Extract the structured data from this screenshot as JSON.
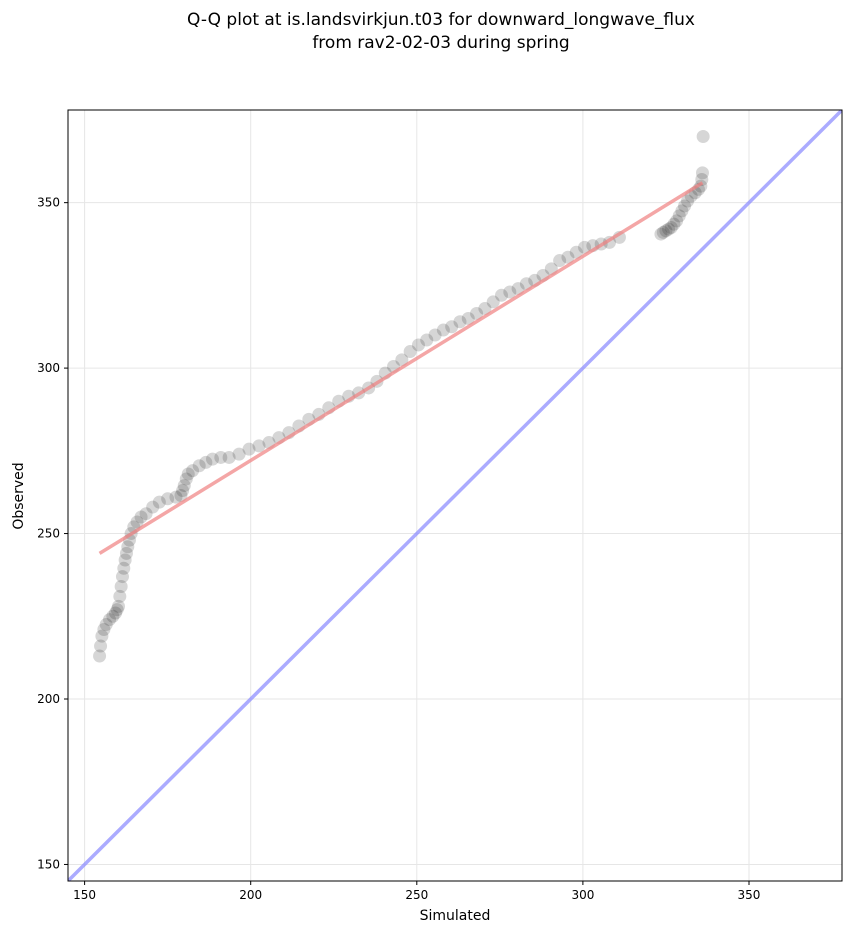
{
  "chart_data": {
    "type": "scatter",
    "title": [
      "Q-Q plot at is.landsvirkjun.t03 for downward_longwave_flux",
      "from rav2-02-03 during spring"
    ],
    "xlabel": "Simulated",
    "ylabel": "Observed",
    "xlim": [
      145,
      378
    ],
    "ylim": [
      145,
      378
    ],
    "xticks": [
      150,
      200,
      250,
      300,
      350
    ],
    "yticks": [
      150,
      200,
      250,
      300,
      350
    ],
    "grid": true,
    "colors": {
      "points": "#1a1a1a",
      "fit_line": "#f08080",
      "identity_line": "#8888ff"
    },
    "quantiles": {
      "x": [
        154.5,
        154.8,
        155.2,
        155.8,
        156.5,
        157.5,
        158.5,
        159.3,
        159.8,
        160.2,
        160.6,
        161.0,
        161.4,
        161.8,
        162.2,
        162.6,
        163.0,
        163.5,
        164.0,
        164.8,
        165.8,
        167.0,
        168.5,
        170.5,
        172.5,
        175.0,
        177.5,
        179.0,
        179.5,
        180.0,
        180.6,
        181.2,
        182.5,
        184.5,
        186.5,
        188.5,
        191.0,
        193.5,
        196.5,
        199.5,
        202.5,
        205.5,
        208.5,
        211.5,
        214.5,
        217.5,
        220.5,
        223.5,
        226.5,
        229.5,
        232.5,
        235.5,
        238.0,
        240.5,
        243.0,
        245.5,
        248.0,
        250.5,
        253.0,
        255.5,
        258.0,
        260.5,
        263.0,
        265.5,
        268.0,
        270.5,
        273.0,
        275.5,
        278.0,
        280.5,
        283.0,
        285.5,
        288.0,
        290.5,
        293.0,
        295.5,
        298.0,
        300.5,
        303.0,
        305.5,
        308.0,
        311.0,
        323.5,
        324.2,
        325.0,
        325.8,
        326.6,
        327.4,
        328.2,
        329.0,
        329.8,
        330.6,
        331.5,
        332.6,
        333.8,
        334.8,
        335.5,
        335.8,
        336.0,
        336.2
      ],
      "y": [
        213.0,
        216.0,
        219.0,
        221.0,
        222.5,
        224.0,
        225.0,
        226.0,
        227.0,
        228.0,
        231.0,
        234.0,
        237.0,
        239.5,
        242.0,
        244.0,
        246.0,
        248.0,
        250.0,
        252.0,
        253.5,
        255.0,
        256.0,
        258.0,
        259.5,
        260.5,
        261.0,
        261.5,
        263.0,
        264.5,
        266.5,
        268.0,
        269.0,
        270.5,
        271.5,
        272.5,
        273.0,
        273.0,
        274.0,
        275.5,
        276.5,
        277.5,
        279.0,
        280.5,
        282.5,
        284.5,
        286.0,
        288.0,
        290.0,
        291.5,
        292.5,
        294.0,
        296.0,
        298.5,
        300.5,
        302.5,
        305.0,
        307.0,
        308.5,
        310.0,
        311.5,
        312.5,
        314.0,
        315.0,
        316.5,
        318.0,
        320.0,
        322.0,
        323.0,
        324.0,
        325.5,
        326.5,
        328.0,
        330.0,
        332.5,
        333.5,
        335.0,
        336.5,
        337.0,
        337.5,
        338.0,
        339.5,
        340.5,
        341.0,
        341.5,
        342.0,
        342.5,
        343.5,
        344.5,
        346.0,
        347.5,
        349.0,
        350.5,
        352.0,
        353.0,
        354.0,
        355.0,
        357.0,
        359.0,
        370.0
      ]
    },
    "fit_line": {
      "x": [
        154.5,
        336.0
      ],
      "y": [
        244.0,
        356.0
      ]
    },
    "identity_line": {
      "x": [
        145,
        378
      ],
      "y": [
        145,
        378
      ]
    }
  }
}
